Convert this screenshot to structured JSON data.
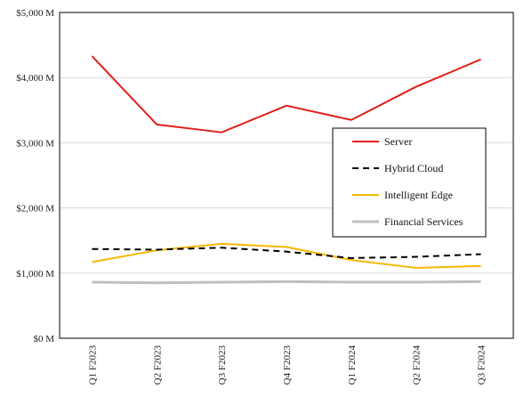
{
  "chart_data": {
    "type": "line",
    "categories": [
      "Q1 F2023",
      "Q2 F2023",
      "Q3 F2023",
      "Q4 F2023",
      "Q1 F2024",
      "Q2 F2024",
      "Q3 F2024"
    ],
    "ylim": [
      0,
      5000
    ],
    "yticks": [
      0,
      1000,
      2000,
      3000,
      4000,
      5000
    ],
    "ytick_labels": [
      "$0 M",
      "$1,000 M",
      "$2,000 M",
      "$3,000 M",
      "$4,000 M",
      "$5,000 M"
    ],
    "grid": true,
    "legend_position": "right",
    "series": [
      {
        "name": "Server",
        "color": "#e0201b",
        "dash": "solid",
        "values": [
          4330,
          3280,
          3160,
          3570,
          3350,
          3860,
          4280
        ]
      },
      {
        "name": "Hybrid Cloud",
        "color": "#000000",
        "dash": "dashed",
        "values": [
          1370,
          1360,
          1390,
          1330,
          1230,
          1250,
          1290
        ]
      },
      {
        "name": "Intelligent Edge",
        "color": "#f5b800",
        "dash": "solid",
        "values": [
          1170,
          1350,
          1450,
          1400,
          1200,
          1080,
          1110
        ]
      },
      {
        "name": "Financial Services",
        "color": "#bfbfbf",
        "dash": "solid",
        "values": [
          860,
          850,
          860,
          870,
          860,
          860,
          870
        ]
      }
    ]
  }
}
